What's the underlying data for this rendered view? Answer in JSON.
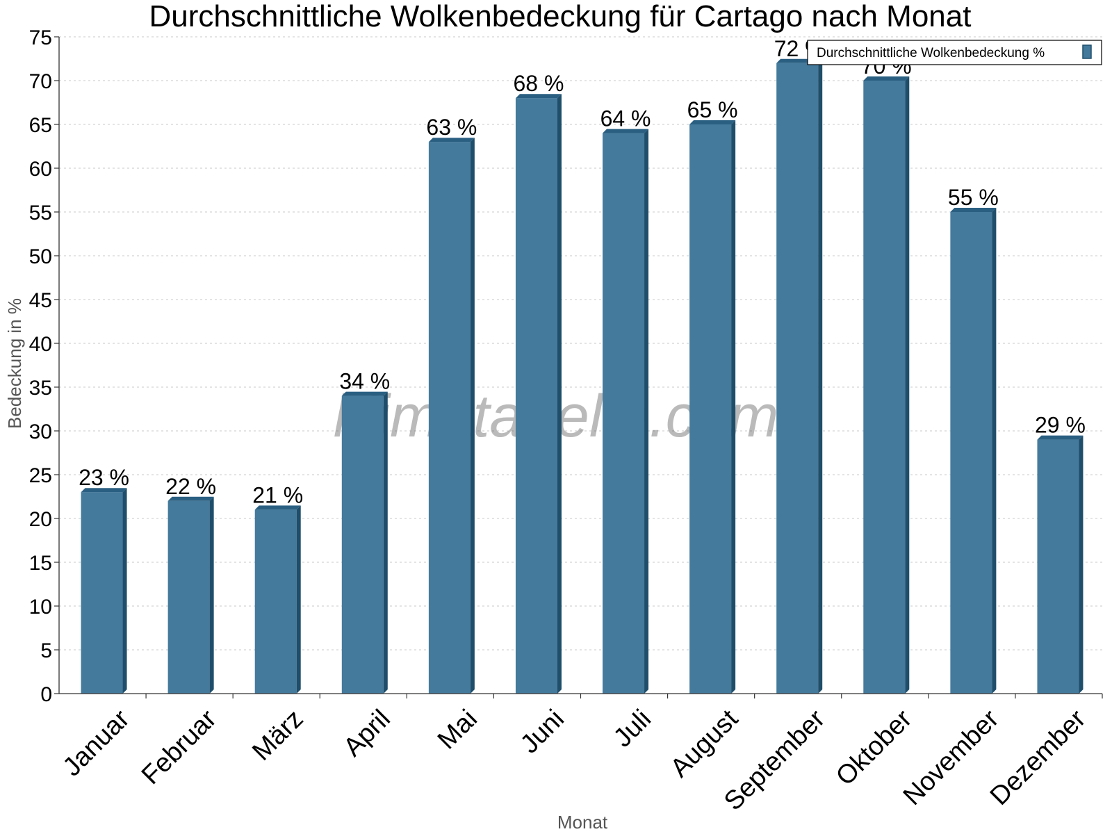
{
  "chart_data": {
    "type": "bar",
    "title": "Durchschnittliche Wolkenbedeckung für Cartago nach Monat",
    "xlabel": "Monat",
    "ylabel": "Bedeckung in %",
    "categories": [
      "Januar",
      "Februar",
      "März",
      "April",
      "Mai",
      "Juni",
      "Juli",
      "August",
      "September",
      "Oktober",
      "November",
      "Dezember"
    ],
    "series": [
      {
        "name": "Durchschnittliche Wolkenbedeckung %",
        "values": [
          23,
          22,
          21,
          34,
          63,
          68,
          64,
          65,
          72,
          70,
          55,
          29
        ],
        "labels": [
          "23 %",
          "22 %",
          "21 %",
          "34 %",
          "63 %",
          "68 %",
          "64 %",
          "65 %",
          "72 %",
          "70 %",
          "55 %",
          "29 %"
        ]
      }
    ],
    "ylim": [
      0,
      75
    ],
    "yticks": [
      0,
      5,
      10,
      15,
      20,
      25,
      30,
      35,
      40,
      45,
      50,
      55,
      60,
      65,
      70,
      75
    ],
    "grid": true,
    "legend_position": "top-right",
    "watermark": "klimatabelle.com",
    "colors": {
      "bar_front": "#447a9c",
      "bar_side": "#1f4e6b",
      "bar_top": "#2a5f82",
      "grid": "#c8c8c8",
      "axis": "#333333"
    }
  }
}
